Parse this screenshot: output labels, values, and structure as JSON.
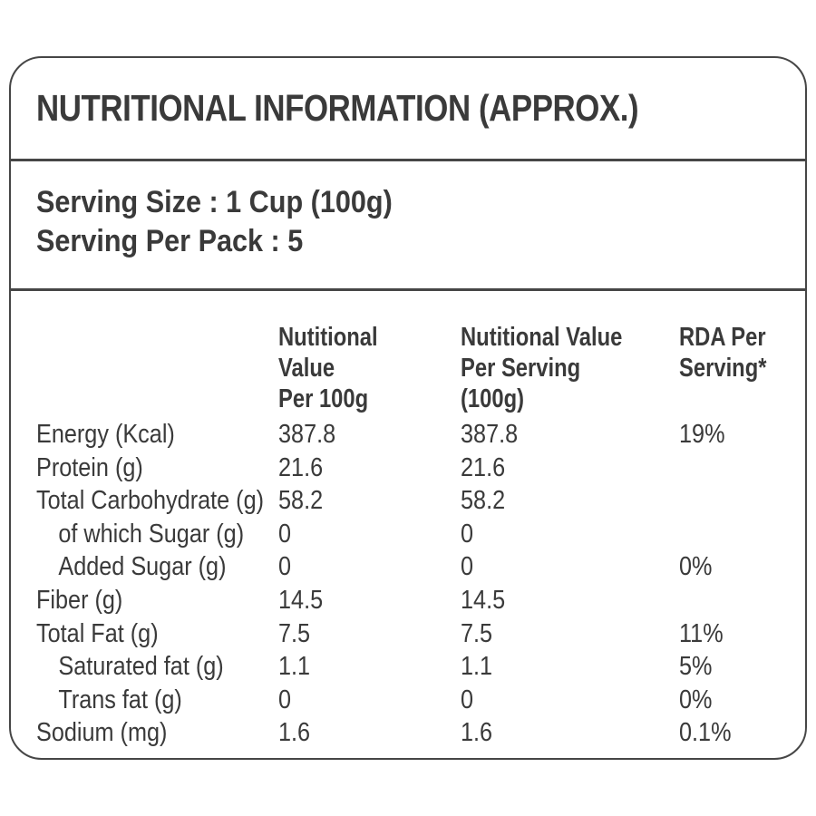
{
  "label": {
    "title": "NUTRITIONAL INFORMATION (APPROX.)",
    "serving": {
      "size_line": "Serving Size : 1 Cup (100g)",
      "pack_line": "Serving Per Pack : 5"
    },
    "table": {
      "column_headers": {
        "nutrient": "",
        "per_100g": "Nutitional Value\nPer 100g",
        "per_serving": "Nutitional Value\nPer Serving (100g)",
        "rda": "RDA Per\nServing*"
      },
      "rows": [
        {
          "name": "Energy (Kcal)",
          "per_100g": "387.8",
          "per_serving": "387.8",
          "rda": "19%"
        },
        {
          "name": "Protein (g)",
          "per_100g": "21.6",
          "per_serving": "21.6",
          "rda": ""
        },
        {
          "name": "Total Carbohydrate (g)",
          "per_100g": "58.2",
          "per_serving": "58.2",
          "rda": ""
        },
        {
          "name": "of which Sugar (g)",
          "per_100g": "0",
          "per_serving": "0",
          "rda": ""
        },
        {
          "name": "Added Sugar (g)",
          "per_100g": "0",
          "per_serving": "0",
          "rda": "0%"
        },
        {
          "name": "Fiber (g)",
          "per_100g": "14.5",
          "per_serving": "14.5",
          "rda": ""
        },
        {
          "name": "Total Fat (g)",
          "per_100g": "7.5",
          "per_serving": "7.5",
          "rda": "11%"
        },
        {
          "name": "Saturated fat (g)",
          "per_100g": "1.1",
          "per_serving": "1.1",
          "rda": "5%"
        },
        {
          "name": "Trans fat (g)",
          "per_100g": "0",
          "per_serving": "0",
          "rda": "0%"
        },
        {
          "name": "Sodium (mg)",
          "per_100g": "1.6",
          "per_serving": "1.6",
          "rda": "0.1%"
        }
      ]
    }
  },
  "colors": {
    "text": "#3a3a3a",
    "border": "#464646",
    "background": "#ffffff"
  }
}
